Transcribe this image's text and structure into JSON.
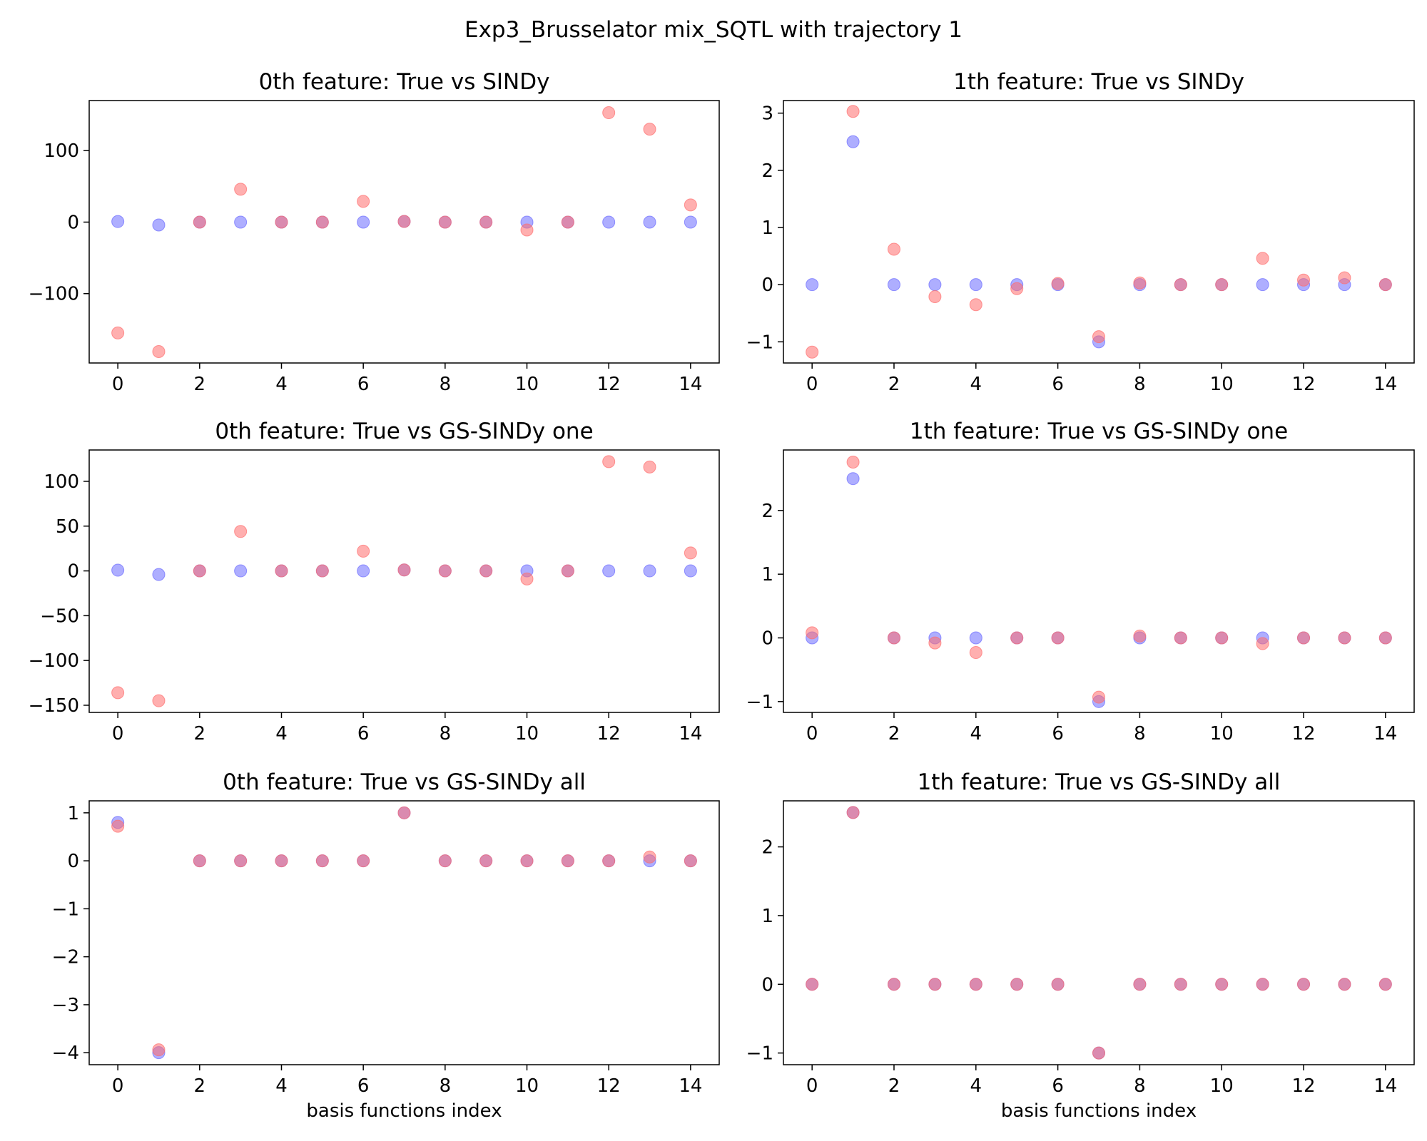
{
  "figure_title": "Exp3_Brusselator mix_SQTL with trajectory 1",
  "colors": {
    "true": "#6b6bff",
    "model": "#ff6e6e",
    "overlap": "#9e3a78"
  },
  "chart_data": [
    {
      "type": "scatter",
      "title": "0th feature: True vs SINDy",
      "xlabel": "",
      "x": [
        0,
        1,
        2,
        3,
        4,
        5,
        6,
        7,
        8,
        9,
        10,
        11,
        12,
        13,
        14
      ],
      "xlim": [
        -0.7,
        14.7
      ],
      "xticks": [
        0,
        2,
        4,
        6,
        8,
        10,
        12,
        14
      ],
      "ylim": [
        -197,
        170
      ],
      "yticks": [
        100,
        0,
        -100
      ],
      "ytick_labels": [
        "100",
        "0",
        "−100"
      ],
      "series": [
        {
          "values": [
            0.8,
            -4,
            0,
            0,
            0,
            0,
            0,
            1,
            0,
            0,
            0,
            0,
            0,
            0,
            0
          ]
        },
        {
          "values": [
            -155,
            -181,
            0,
            46,
            0,
            0,
            29,
            1,
            0,
            0,
            -11,
            0,
            153,
            130,
            24
          ]
        }
      ]
    },
    {
      "type": "scatter",
      "title": "1th feature: True vs SINDy",
      "xlabel": "",
      "x": [
        0,
        1,
        2,
        3,
        4,
        5,
        6,
        7,
        8,
        9,
        10,
        11,
        12,
        13,
        14
      ],
      "xlim": [
        -0.7,
        14.7
      ],
      "xticks": [
        0,
        2,
        4,
        6,
        8,
        10,
        12,
        14
      ],
      "ylim": [
        -1.37,
        3.22
      ],
      "yticks": [
        3,
        2,
        1,
        0,
        -1
      ],
      "ytick_labels": [
        "3",
        "2",
        "1",
        "0",
        "−1"
      ],
      "series": [
        {
          "values": [
            0,
            2.5,
            0,
            0,
            0,
            0,
            0,
            -1,
            0,
            0,
            0,
            0,
            0,
            0,
            0
          ]
        },
        {
          "values": [
            -1.18,
            3.03,
            0.62,
            -0.21,
            -0.35,
            -0.07,
            0.02,
            -0.91,
            0.03,
            0,
            0,
            0.46,
            0.08,
            0.12,
            0
          ]
        }
      ]
    },
    {
      "type": "scatter",
      "title": "0th feature: True vs GS-SINDy one",
      "xlabel": "",
      "x": [
        0,
        1,
        2,
        3,
        4,
        5,
        6,
        7,
        8,
        9,
        10,
        11,
        12,
        13,
        14
      ],
      "xlim": [
        -0.7,
        14.7
      ],
      "xticks": [
        0,
        2,
        4,
        6,
        8,
        10,
        12,
        14
      ],
      "ylim": [
        -158,
        135
      ],
      "yticks": [
        100,
        50,
        0,
        -50,
        -100,
        -150
      ],
      "ytick_labels": [
        "100",
        "50",
        "0",
        "−50",
        "−100",
        "−150"
      ],
      "series": [
        {
          "values": [
            0.8,
            -4,
            0,
            0,
            0,
            0,
            0,
            1,
            0,
            0,
            0,
            0,
            0,
            0,
            0
          ]
        },
        {
          "values": [
            -136,
            -145,
            0,
            44,
            0,
            0,
            22,
            1,
            0,
            0,
            -9,
            0,
            122,
            116,
            20
          ]
        }
      ]
    },
    {
      "type": "scatter",
      "title": "1th feature: True vs GS-SINDy one",
      "xlabel": "",
      "x": [
        0,
        1,
        2,
        3,
        4,
        5,
        6,
        7,
        8,
        9,
        10,
        11,
        12,
        13,
        14
      ],
      "xlim": [
        -0.7,
        14.7
      ],
      "xticks": [
        0,
        2,
        4,
        6,
        8,
        10,
        12,
        14
      ],
      "ylim": [
        -1.17,
        2.95
      ],
      "yticks": [
        2,
        1,
        0,
        -1
      ],
      "ytick_labels": [
        "2",
        "1",
        "0",
        "−1"
      ],
      "series": [
        {
          "values": [
            0,
            2.5,
            0,
            0,
            0,
            0,
            0,
            -1,
            0,
            0,
            0,
            0,
            0,
            0,
            0
          ]
        },
        {
          "values": [
            0.08,
            2.76,
            0,
            -0.08,
            -0.23,
            0,
            0,
            -0.93,
            0.03,
            0,
            0,
            -0.09,
            0,
            0,
            0
          ]
        }
      ]
    },
    {
      "type": "scatter",
      "title": "0th feature: True vs GS-SINDy all",
      "xlabel": "basis functions index",
      "x": [
        0,
        1,
        2,
        3,
        4,
        5,
        6,
        7,
        8,
        9,
        10,
        11,
        12,
        13,
        14
      ],
      "xlim": [
        -0.7,
        14.7
      ],
      "xticks": [
        0,
        2,
        4,
        6,
        8,
        10,
        12,
        14
      ],
      "ylim": [
        -4.25,
        1.25
      ],
      "yticks": [
        1,
        0,
        -1,
        -2,
        -3,
        -4
      ],
      "ytick_labels": [
        "1",
        "0",
        "−1",
        "−2",
        "−3",
        "−4"
      ],
      "series": [
        {
          "values": [
            0.8,
            -4,
            0,
            0,
            0,
            0,
            0,
            1,
            0,
            0,
            0,
            0,
            0,
            0,
            0
          ]
        },
        {
          "values": [
            0.72,
            -3.94,
            0,
            0,
            0,
            0,
            0,
            1,
            0,
            0,
            0,
            0,
            0,
            0.08,
            0
          ]
        }
      ]
    },
    {
      "type": "scatter",
      "title": "1th feature: True vs GS-SINDy all",
      "xlabel": "basis functions index",
      "x": [
        0,
        1,
        2,
        3,
        4,
        5,
        6,
        7,
        8,
        9,
        10,
        11,
        12,
        13,
        14
      ],
      "xlim": [
        -0.7,
        14.7
      ],
      "xticks": [
        0,
        2,
        4,
        6,
        8,
        10,
        12,
        14
      ],
      "ylim": [
        -1.17,
        2.67
      ],
      "yticks": [
        2,
        1,
        0,
        -1
      ],
      "ytick_labels": [
        "2",
        "1",
        "0",
        "−1"
      ],
      "series": [
        {
          "values": [
            0,
            2.5,
            0,
            0,
            0,
            0,
            0,
            -1,
            0,
            0,
            0,
            0,
            0,
            0,
            0
          ]
        },
        {
          "values": [
            0,
            2.5,
            0,
            0,
            0,
            0,
            0,
            -1,
            0,
            0,
            0,
            0,
            0,
            0,
            0
          ]
        }
      ]
    }
  ]
}
